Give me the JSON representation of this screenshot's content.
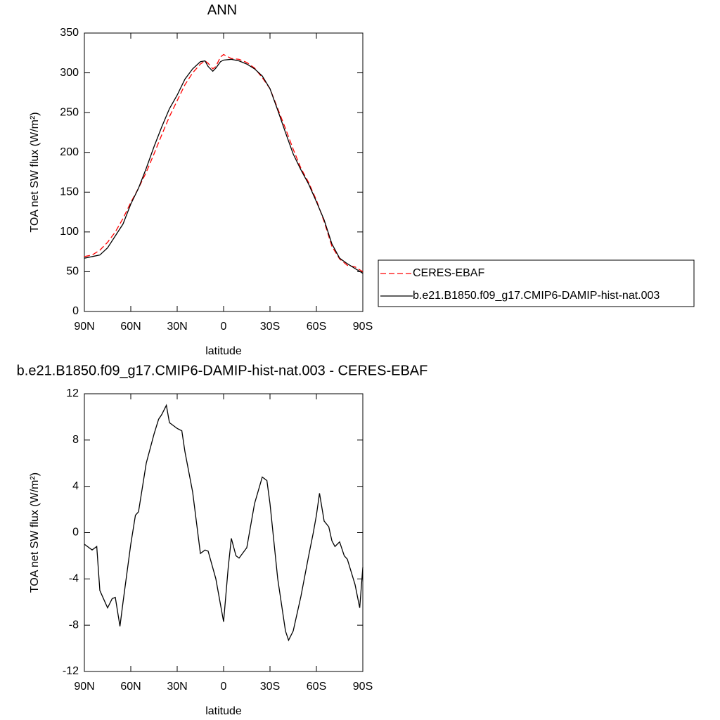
{
  "chart_data": [
    {
      "type": "line",
      "title": "ANN",
      "x_label": "latitude",
      "y_label": "TOA net SW flux (W/m²)",
      "xlim": [
        90,
        -90
      ],
      "ylim": [
        0,
        350
      ],
      "xticks": [
        {
          "value": 90,
          "label": "90N"
        },
        {
          "value": 60,
          "label": "60N"
        },
        {
          "value": 30,
          "label": "30N"
        },
        0,
        {
          "value": -30,
          "label": "30S"
        },
        {
          "value": -60,
          "label": "60S"
        },
        {
          "value": -90,
          "label": "90S"
        }
      ],
      "yticks": [
        0,
        50,
        100,
        150,
        200,
        250,
        300,
        350
      ],
      "legend": "right",
      "x": [
        90,
        85,
        80,
        75,
        70,
        65,
        60,
        55,
        50,
        45,
        40,
        35,
        30,
        25,
        20,
        15,
        12,
        10,
        7,
        5,
        2,
        0,
        -5,
        -10,
        -15,
        -20,
        -25,
        -30,
        -35,
        -40,
        -45,
        -50,
        -55,
        -60,
        -65,
        -70,
        -75,
        -80,
        -85,
        -90
      ],
      "series": [
        {
          "name": "CERES-EBAF",
          "color": "#ff0000",
          "line_style": "dashed",
          "values": [
            69,
            71,
            77,
            87,
            100,
            117,
            137,
            155,
            175,
            198,
            222,
            245,
            265,
            285,
            300,
            311,
            315,
            312,
            305,
            308,
            320,
            323,
            318,
            317,
            313,
            306,
            294,
            280,
            255,
            230,
            204,
            180,
            162,
            140,
            113,
            82,
            66,
            58,
            56,
            50
          ]
        },
        {
          "name": "b.e21.B1850.f09_g17.CMIP6-DAMIP-hist-nat.003",
          "color": "#000000",
          "line_style": "solid",
          "values": [
            67,
            69,
            71,
            80,
            95,
            110,
            135,
            155,
            180,
            207,
            232,
            255,
            272,
            292,
            305,
            314,
            315,
            308,
            302,
            306,
            314,
            316,
            317,
            315,
            311,
            305,
            296,
            280,
            253,
            225,
            198,
            178,
            160,
            138,
            115,
            85,
            67,
            60,
            54,
            48
          ]
        }
      ]
    },
    {
      "type": "line",
      "title": "b.e21.B1850.f09_g17.CMIP6-DAMIP-hist-nat.003 - CERES-EBAF",
      "x_label": "latitude",
      "y_label": "TOA net SW flux (W/m²)",
      "xlim": [
        90,
        -90
      ],
      "ylim": [
        -12,
        12
      ],
      "xticks": [
        {
          "value": 90,
          "label": "90N"
        },
        {
          "value": 60,
          "label": "60N"
        },
        {
          "value": 30,
          "label": "30N"
        },
        0,
        {
          "value": -30,
          "label": "30S"
        },
        {
          "value": -60,
          "label": "60S"
        },
        {
          "value": -90,
          "label": "90S"
        }
      ],
      "yticks": [
        -12,
        -8,
        -4,
        0,
        4,
        8,
        12
      ],
      "color": "#000000",
      "x": [
        90,
        85,
        82,
        80,
        75,
        72,
        70,
        67,
        65,
        60,
        57,
        55,
        50,
        45,
        42,
        40,
        37,
        35,
        30,
        27,
        25,
        20,
        15,
        12,
        10,
        5,
        0,
        -3,
        -5,
        -8,
        -10,
        -15,
        -20,
        -25,
        -28,
        -30,
        -35,
        -40,
        -42,
        -45,
        -50,
        -55,
        -58,
        -60,
        -62,
        -65,
        -68,
        -70,
        -72,
        -75,
        -78,
        -80,
        -85,
        -88,
        -90
      ],
      "values": [
        -1,
        -1.5,
        -1.2,
        -5,
        -6.5,
        -5.7,
        -5.6,
        -8.1,
        -6,
        -1,
        1.5,
        1.8,
        6,
        8.5,
        9.8,
        10.2,
        11,
        9.5,
        9,
        8.8,
        7,
        3.5,
        -1.8,
        -1.5,
        -1.6,
        -4,
        -7.7,
        -3,
        -0.5,
        -2,
        -2.2,
        -1.3,
        2.5,
        4.8,
        4.5,
        2.5,
        -4,
        -8.5,
        -9.3,
        -8.5,
        -5.5,
        -2,
        0,
        1.5,
        3.4,
        1,
        0.5,
        -0.7,
        -1.2,
        -0.8,
        -2,
        -2.3,
        -4.5,
        -6.5,
        -3
      ]
    }
  ]
}
